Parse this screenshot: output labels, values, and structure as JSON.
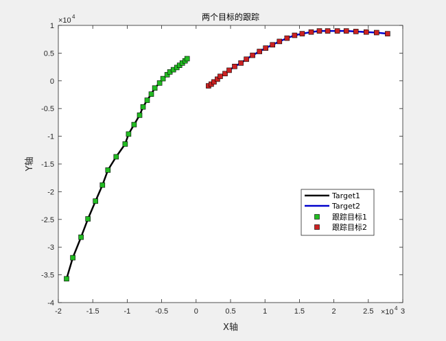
{
  "chart_data": {
    "type": "line",
    "title": "两个目标的跟踪",
    "xlabel": "X轴",
    "ylabel": "Y轴",
    "xlim": [
      -20000,
      30000
    ],
    "ylim": [
      -40000,
      10000
    ],
    "x_exponent": {
      "base": "×10",
      "power": "4"
    },
    "y_exponent": {
      "base": "×10",
      "power": "4"
    },
    "xticks": [
      -20000,
      -15000,
      -10000,
      -5000,
      0,
      5000,
      10000,
      15000,
      20000,
      25000,
      30000
    ],
    "xtick_labels": [
      "-2",
      "-1.5",
      "-1",
      "-0.5",
      "0",
      "0.5",
      "1",
      "1.5",
      "2",
      "2.5",
      "3"
    ],
    "yticks": [
      10000,
      5000,
      0,
      -5000,
      -10000,
      -15000,
      -20000,
      -25000,
      -30000,
      -35000,
      -40000
    ],
    "ytick_labels": [
      "1",
      "0.5",
      "0",
      "-0.5",
      "-1",
      "-1.5",
      "-2",
      "-2.5",
      "-3",
      "-3.5",
      "-4"
    ],
    "grid": false,
    "legend_position": "right",
    "colors": {
      "target1_line": "#000000",
      "target2_line": "#0000cc",
      "track1_marker": "#22bb22",
      "track2_marker": "#cc2222",
      "marker_edge": "#000000"
    },
    "series": [
      {
        "name": "Target1",
        "kind": "line",
        "x": [
          -18800,
          -17900,
          -16700,
          -15700,
          -14600,
          -13600,
          -12800,
          -11600,
          -10300,
          -9800,
          -9000,
          -8200,
          -7700,
          -7100,
          -6500,
          -6000,
          -5300,
          -4800,
          -4200,
          -3800,
          -3300,
          -2800,
          -2400,
          -2000,
          -1600,
          -1300
        ],
        "y": [
          -35700,
          -31900,
          -28200,
          -24900,
          -21700,
          -18800,
          -16100,
          -13700,
          -11400,
          -9600,
          -7900,
          -6200,
          -4700,
          -3500,
          -2400,
          -1300,
          -400,
          400,
          1100,
          1600,
          2000,
          2400,
          2800,
          3200,
          3600,
          4000
        ]
      },
      {
        "name": "Target2",
        "kind": "line",
        "x": [
          1800,
          2200,
          2600,
          3100,
          3500,
          4200,
          4800,
          5600,
          6500,
          7300,
          8200,
          9200,
          10100,
          11100,
          12100,
          13200,
          14300,
          15400,
          16700,
          17900,
          19100,
          20500,
          21800,
          23200,
          24700,
          26200,
          27800
        ],
        "y": [
          -900,
          -600,
          -200,
          300,
          800,
          1300,
          1900,
          2600,
          3200,
          3900,
          4600,
          5300,
          5900,
          6500,
          7100,
          7700,
          8200,
          8500,
          8800,
          9000,
          9000,
          9000,
          9000,
          8900,
          8800,
          8700,
          8500
        ]
      },
      {
        "name": "跟踪目标1",
        "kind": "markers",
        "x": [
          -18800,
          -17900,
          -16700,
          -15700,
          -14600,
          -13600,
          -12800,
          -11600,
          -10300,
          -9800,
          -9000,
          -8200,
          -7700,
          -7100,
          -6500,
          -6000,
          -5300,
          -4800,
          -4200,
          -3800,
          -3300,
          -2800,
          -2400,
          -2000,
          -1600,
          -1300
        ],
        "y": [
          -35700,
          -31900,
          -28200,
          -24900,
          -21700,
          -18800,
          -16100,
          -13700,
          -11400,
          -9600,
          -7900,
          -6200,
          -4700,
          -3500,
          -2400,
          -1300,
          -400,
          400,
          1100,
          1600,
          2000,
          2400,
          2800,
          3200,
          3600,
          4000
        ]
      },
      {
        "name": "跟踪目标2",
        "kind": "markers",
        "x": [
          1800,
          2200,
          2600,
          3100,
          3500,
          4200,
          4800,
          5600,
          6500,
          7300,
          8200,
          9200,
          10100,
          11100,
          12100,
          13200,
          14300,
          15400,
          16700,
          17900,
          19100,
          20500,
          21800,
          23200,
          24700,
          26200,
          27800
        ],
        "y": [
          -900,
          -600,
          -200,
          300,
          800,
          1300,
          1900,
          2600,
          3200,
          3900,
          4600,
          5300,
          5900,
          6500,
          7100,
          7700,
          8200,
          8500,
          8800,
          9000,
          9000,
          9000,
          9000,
          8900,
          8800,
          8700,
          8500
        ]
      }
    ]
  }
}
